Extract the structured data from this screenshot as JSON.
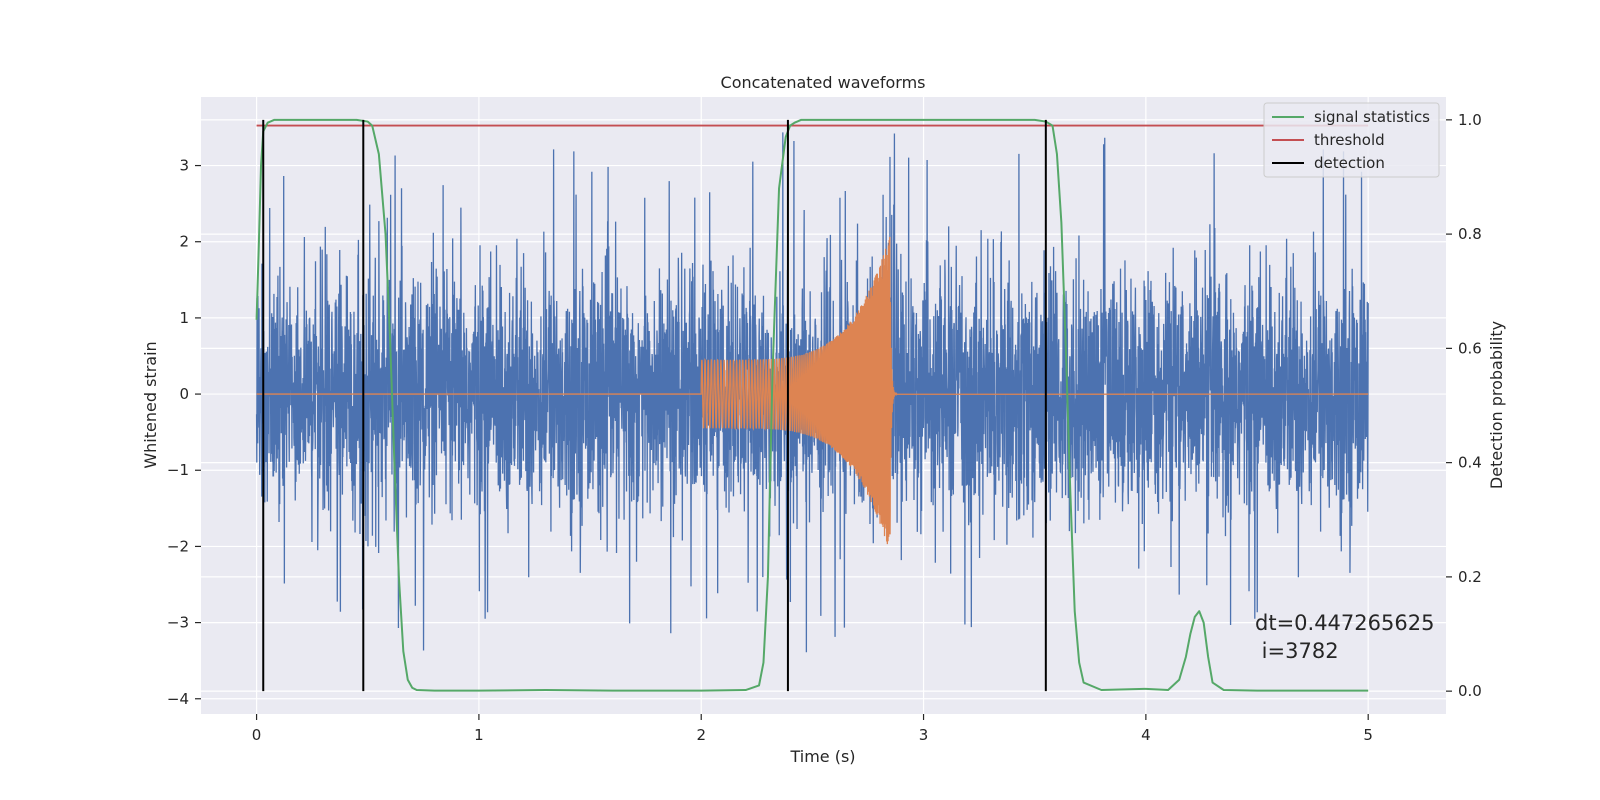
{
  "chart_data": {
    "type": "line",
    "title": "Concatenated waveforms",
    "xlabel": "Time (s)",
    "ylabel": "Whitened strain",
    "ylabel_right": "Detection probability",
    "xlim": [
      -0.25,
      5.35
    ],
    "ylim": [
      -4.2,
      3.9
    ],
    "ylim_right": [
      -0.04,
      1.04
    ],
    "x_ticks": [
      0,
      1,
      2,
      3,
      4,
      5
    ],
    "x_tick_labels": [
      "0",
      "1",
      "2",
      "3",
      "4",
      "5"
    ],
    "y_ticks": [
      -4,
      -3,
      -2,
      -1,
      0,
      1,
      2,
      3
    ],
    "y_tick_labels": [
      "−4",
      "−3",
      "−2",
      "−1",
      "0",
      "1",
      "2",
      "3"
    ],
    "y_ticks_right": [
      0.0,
      0.2,
      0.4,
      0.6,
      0.8,
      1.0
    ],
    "y_tick_labels_right": [
      "0.0",
      "0.2",
      "0.4",
      "0.6",
      "0.8",
      "1.0"
    ],
    "grid": true,
    "legend_position": "top-right",
    "colors": {
      "background": "#eaeaf2",
      "grid": "#ffffff",
      "strain": "#4c72b0",
      "waveform": "#dd8452",
      "signal_statistics": "#55a868",
      "threshold": "#c44e52",
      "detection": "#000000"
    },
    "series": [
      {
        "name": "signal statistics",
        "axis": "right",
        "x": [
          0.0,
          0.01,
          0.02,
          0.03,
          0.05,
          0.08,
          0.1,
          0.15,
          0.3,
          0.45,
          0.5,
          0.52,
          0.55,
          0.58,
          0.6,
          0.62,
          0.64,
          0.66,
          0.68,
          0.7,
          0.72,
          0.8,
          1.0,
          1.3,
          1.6,
          2.0,
          2.2,
          2.26,
          2.28,
          2.3,
          2.32,
          2.35,
          2.38,
          2.4,
          2.42,
          2.45,
          2.5,
          3.0,
          3.5,
          3.55,
          3.58,
          3.6,
          3.62,
          3.64,
          3.66,
          3.68,
          3.7,
          3.72,
          3.8,
          4.0,
          4.1,
          4.15,
          4.18,
          4.2,
          4.22,
          4.24,
          4.26,
          4.28,
          4.3,
          4.35,
          4.5,
          5.0
        ],
        "y": [
          0.65,
          0.78,
          0.92,
          0.98,
          0.995,
          1.0,
          1.0,
          1.0,
          1.0,
          1.0,
          0.997,
          0.99,
          0.94,
          0.8,
          0.62,
          0.4,
          0.2,
          0.07,
          0.02,
          0.006,
          0.002,
          0.001,
          0.001,
          0.002,
          0.001,
          0.001,
          0.002,
          0.01,
          0.05,
          0.2,
          0.55,
          0.88,
          0.97,
          0.99,
          0.995,
          1.0,
          1.0,
          1.0,
          1.0,
          0.997,
          0.99,
          0.94,
          0.82,
          0.6,
          0.35,
          0.14,
          0.05,
          0.015,
          0.002,
          0.004,
          0.002,
          0.02,
          0.06,
          0.1,
          0.13,
          0.14,
          0.12,
          0.06,
          0.015,
          0.002,
          0.001,
          0.001
        ]
      },
      {
        "name": "threshold",
        "axis": "right",
        "x": [
          0.0,
          5.0
        ],
        "y": [
          0.99,
          0.99
        ]
      },
      {
        "name": "detection",
        "axis": "right",
        "segments": [
          0.03,
          0.48,
          2.39,
          3.55
        ],
        "y_range": [
          0.0,
          1.0
        ]
      }
    ],
    "strain_noise": {
      "axis": "left",
      "x_range": [
        0.0,
        5.0
      ],
      "typical_peak": 2.5,
      "max_peak": 3.6,
      "min_peak": -3.6
    },
    "injected_waveform": {
      "axis": "left",
      "x_range": [
        2.0,
        2.85
      ],
      "start_amplitude": 0.45,
      "peak_amplitude": 2.1,
      "min_amplitude": -2.1
    },
    "annotation": {
      "line1": "dt=0.447265625",
      "line2": " i=3782"
    },
    "legend": [
      {
        "label": "signal statistics",
        "color": "#55a868"
      },
      {
        "label": "threshold",
        "color": "#c44e52"
      },
      {
        "label": "detection",
        "color": "#000000"
      }
    ]
  }
}
